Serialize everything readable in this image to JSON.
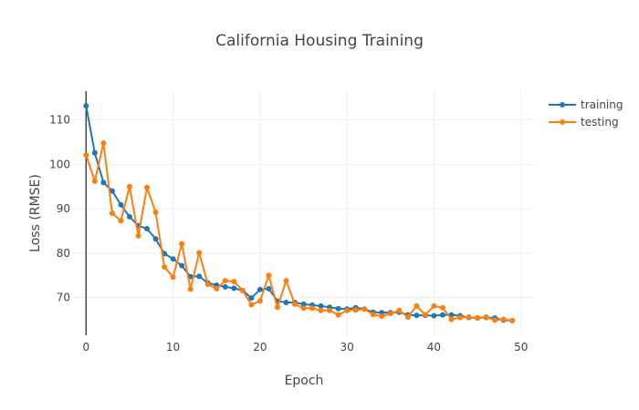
{
  "chart_data": {
    "type": "line",
    "title": "California Housing Training",
    "xlabel": "Epoch",
    "ylabel": "Loss (RMSE)",
    "xlim": [
      -1.5,
      51.5
    ],
    "ylim": [
      61.5,
      116.5
    ],
    "xticks": [
      0,
      10,
      20,
      30,
      40,
      50
    ],
    "yticks": [
      70,
      80,
      90,
      100,
      110
    ],
    "grid": true,
    "legend_position": "top-right",
    "x": [
      0,
      1,
      2,
      3,
      4,
      5,
      6,
      7,
      8,
      9,
      10,
      11,
      12,
      13,
      14,
      15,
      16,
      17,
      18,
      19,
      20,
      21,
      22,
      23,
      24,
      25,
      26,
      27,
      28,
      29,
      30,
      31,
      32,
      33,
      34,
      35,
      36,
      37,
      38,
      39,
      40,
      41,
      42,
      43,
      44,
      45,
      46,
      47,
      48,
      49
    ],
    "series": [
      {
        "name": "training",
        "color": "#1f77b4",
        "values": [
          113.2,
          102.6,
          95.9,
          94.0,
          90.9,
          88.2,
          86.2,
          85.5,
          83.2,
          79.9,
          78.7,
          77.2,
          74.7,
          74.8,
          73.3,
          72.8,
          72.4,
          72.1,
          71.6,
          69.9,
          71.8,
          72.0,
          69.2,
          68.9,
          68.9,
          68.5,
          68.3,
          68.1,
          67.8,
          67.5,
          67.4,
          67.7,
          67.4,
          66.7,
          66.6,
          66.6,
          66.7,
          66.1,
          66.0,
          66.0,
          65.9,
          66.1,
          66.1,
          65.9,
          65.5,
          65.4,
          65.5,
          65.4,
          64.9,
          64.8
        ]
      },
      {
        "name": "testing",
        "color": "#ff7f0e",
        "values": [
          102.1,
          96.2,
          104.8,
          89.0,
          87.3,
          95.0,
          83.9,
          94.8,
          89.2,
          76.9,
          74.6,
          82.1,
          71.9,
          80.1,
          73.0,
          72.0,
          73.8,
          73.6,
          71.6,
          68.4,
          69.2,
          75.0,
          67.8,
          73.8,
          68.5,
          67.6,
          67.6,
          67.1,
          67.1,
          66.1,
          67.1,
          67.2,
          67.4,
          66.2,
          65.8,
          66.4,
          67.1,
          65.6,
          68.1,
          66.1,
          68.1,
          67.7,
          65.1,
          65.5,
          65.6,
          65.4,
          65.6,
          64.9,
          65.1,
          64.8
        ]
      }
    ]
  }
}
